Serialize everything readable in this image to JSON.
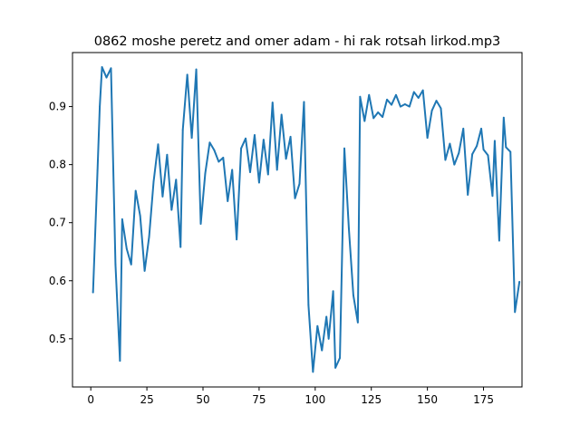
{
  "chart_data": {
    "type": "line",
    "title": "0862 moshe peretz and omer adam - hi rak rotsah lirkod.mp3",
    "xlabel": "",
    "ylabel": "",
    "xlim": [
      -8.15,
      192.15
    ],
    "ylim": [
      0.417,
      0.993
    ],
    "x_ticks": [
      0,
      25,
      50,
      75,
      100,
      125,
      150,
      175
    ],
    "y_ticks": [
      0.5,
      0.6,
      0.7,
      0.8,
      0.9
    ],
    "y_tick_labels": [
      "0.5",
      "0.6",
      "0.7",
      "0.8",
      "0.9"
    ],
    "grid": false,
    "color": "#1f77b4",
    "series": [
      {
        "x_start": 1,
        "values": [
          0.58,
          0.79,
          0.9,
          0.968,
          0.95,
          0.966,
          0.628,
          0.462,
          0.706,
          0.655,
          0.628,
          0.755,
          0.712,
          0.617,
          0.676,
          0.771,
          0.835,
          0.745,
          0.817,
          0.722,
          0.774,
          0.658,
          0.86,
          0.955,
          0.846,
          0.964,
          0.698,
          0.785,
          0.838,
          0.825,
          0.805,
          0.812,
          0.737,
          0.791,
          0.671,
          0.828,
          0.845,
          0.787,
          0.851,
          0.769,
          0.843,
          0.783,
          0.907,
          0.791,
          0.886,
          0.81,
          0.848,
          0.742,
          0.767,
          0.908,
          0.558,
          0.443,
          0.522,
          0.48,
          0.538,
          0.5,
          0.582,
          0.45,
          0.467,
          0.828,
          0.69,
          0.575,
          0.528,
          0.917,
          0.875,
          0.92,
          0.88,
          0.89,
          0.882,
          0.912,
          0.903,
          0.92,
          0.9,
          0.904,
          0.9,
          0.925,
          0.915,
          0.928,
          0.846,
          0.893,
          0.91,
          0.897,
          0.808,
          0.836,
          0.8,
          0.82,
          0.862,
          0.748,
          0.818,
          0.832,
          0.862,
          0.826,
          0.816,
          0.746,
          0.841,
          0.669,
          0.881,
          0.83,
          0.822,
          0.546,
          0.598
        ],
        "x": [
          1,
          3,
          4,
          5,
          7,
          9,
          11,
          13,
          14,
          16,
          18,
          20,
          22,
          24,
          26,
          28,
          30,
          32,
          34,
          36,
          38,
          40,
          41,
          43,
          45,
          47,
          49,
          51,
          53,
          55,
          57,
          59,
          61,
          63,
          65,
          67,
          69,
          71,
          73,
          75,
          77,
          79,
          81,
          83,
          85,
          87,
          89,
          91,
          93,
          95,
          97,
          99,
          101,
          103,
          105,
          106,
          108,
          109,
          111,
          113,
          115,
          117,
          119,
          120,
          122,
          124,
          126,
          128,
          130,
          132,
          134,
          136,
          138,
          140,
          142,
          144,
          146,
          148,
          150,
          152,
          154,
          156,
          158,
          160,
          162,
          164,
          166,
          168,
          170,
          172,
          174,
          175,
          177,
          179,
          180,
          182,
          184,
          185,
          187,
          189,
          191
        ]
      }
    ]
  }
}
